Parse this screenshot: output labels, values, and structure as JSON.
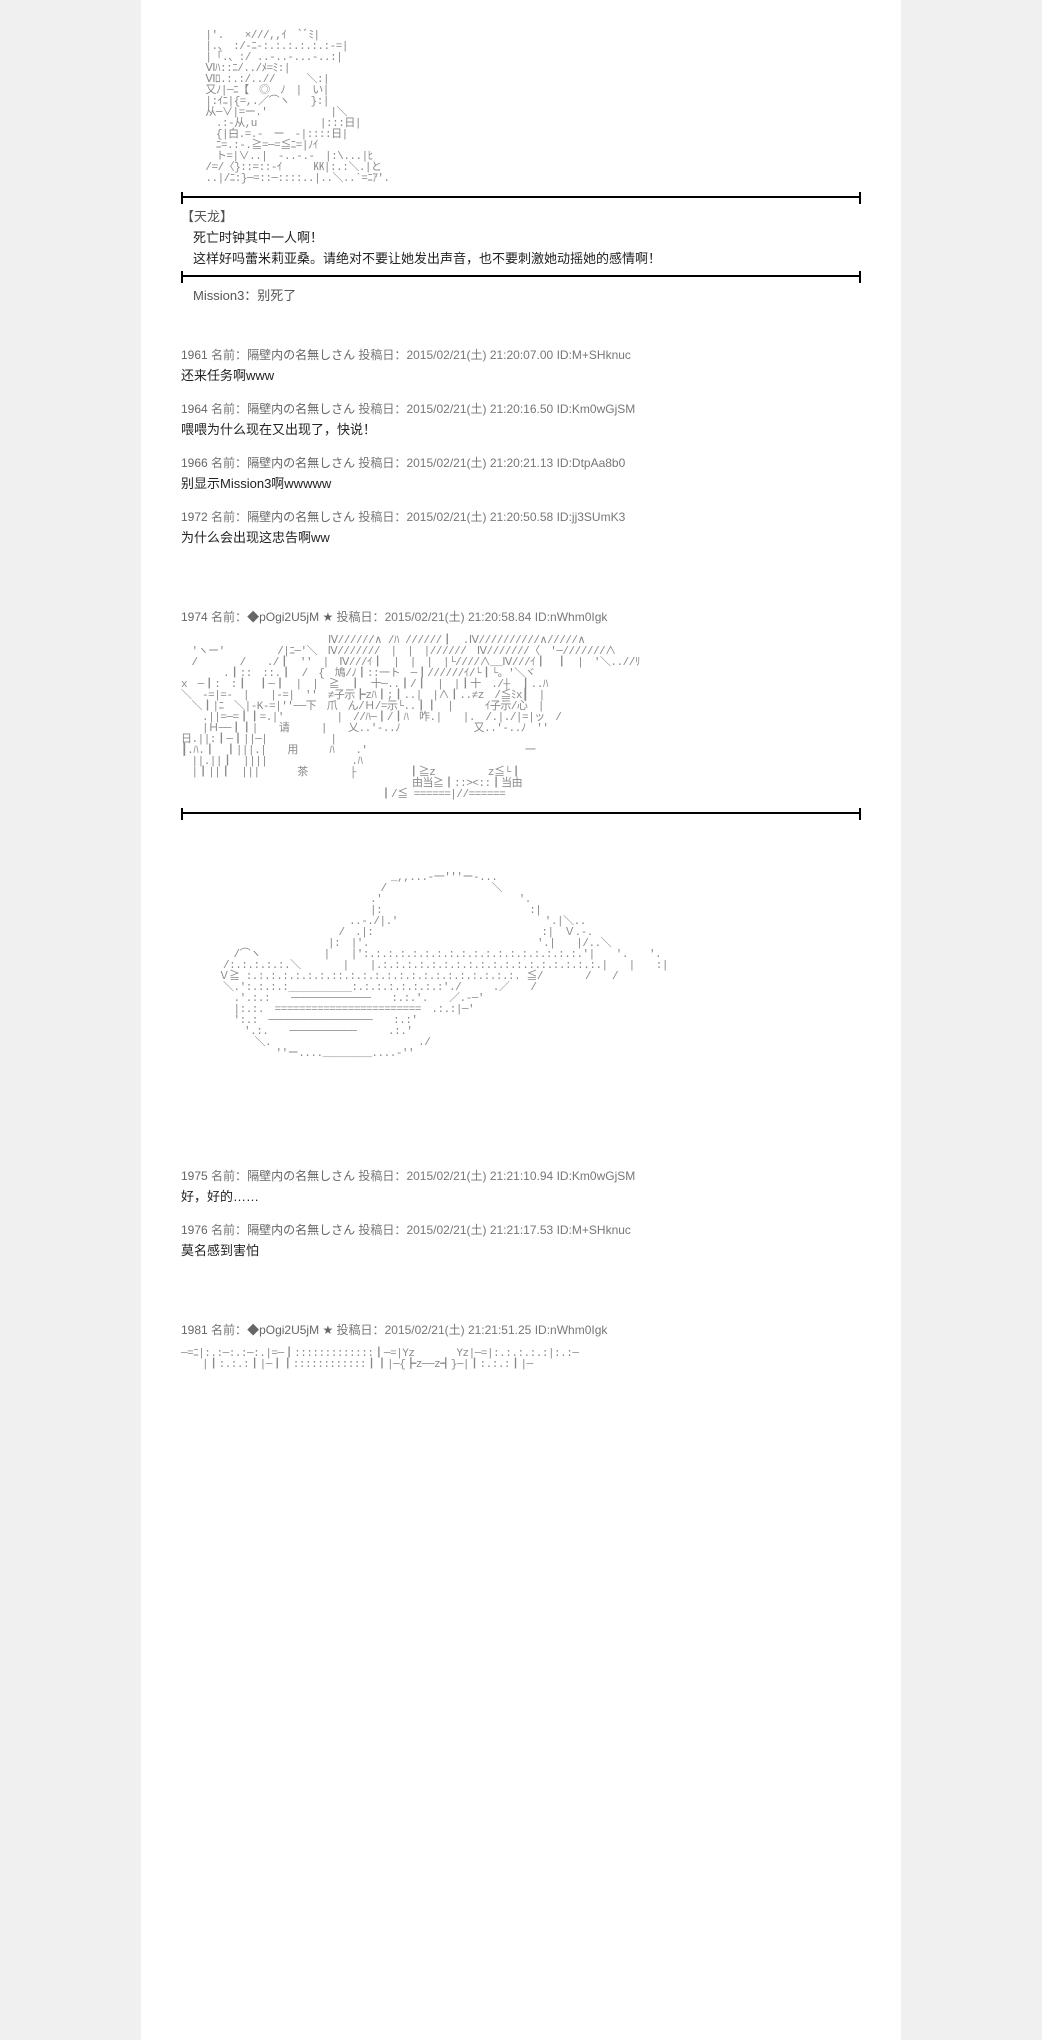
{
  "colors": {
    "page_bg": "#ffffff",
    "body_bg": "#f0f0f0",
    "text": "#222222",
    "meta": "#777777",
    "ascii": "#888888",
    "divider": "#000000"
  },
  "dialogue1": {
    "speaker": "【天龙】",
    "lines": [
      "死亡时钟其中一人啊！",
      "这样好吗蕾米莉亚桑。请绝对不要让她发出声音，也不要刺激她动摇她的感情啊！"
    ]
  },
  "mission": "Mission3：别死了",
  "posts1": [
    {
      "num": "1961",
      "name": "隔壁内の名無しさん",
      "date": "2015/02/21(土) 21:20:07.00",
      "id": "M+SHknuc",
      "body": "还来任务啊www"
    },
    {
      "num": "1964",
      "name": "隔壁内の名無しさん",
      "date": "2015/02/21(土) 21:20:16.50",
      "id": "Km0wGjSM",
      "body": "喂喂为什么现在又出现了，快说！"
    },
    {
      "num": "1966",
      "name": "隔壁内の名無しさん",
      "date": "2015/02/21(土) 21:20:21.13",
      "id": "DtpAa8b0",
      "body": "别显示Mission3啊wwwww"
    },
    {
      "num": "1972",
      "name": "隔壁内の名無しさん",
      "date": "2015/02/21(土) 21:20:50.58",
      "id": "jj3SUmK3",
      "body": "为什么会出现这忠告啊ww"
    }
  ],
  "post_trip": {
    "num": "1974",
    "name": "◆pOgi2U5jM",
    "star": "★",
    "date": "2015/02/21(土) 21:20:58.84",
    "id": "nWhm0Igk"
  },
  "tea_text": {
    "line1": "请",
    "line2": "用",
    "line3": "茶"
  },
  "posts2": [
    {
      "num": "1975",
      "name": "隔壁内の名無しさん",
      "date": "2015/02/21(土) 21:21:10.94",
      "id": "Km0wGjSM",
      "body": "好，好的……"
    },
    {
      "num": "1976",
      "name": "隔壁内の名無しさん",
      "date": "2015/02/21(土) 21:21:17.53",
      "id": "M+SHknuc",
      "body": "莫名感到害怕"
    }
  ],
  "post_trip2": {
    "num": "1981",
    "name": "◆pOgi2U5jM",
    "star": "★",
    "date": "2015/02/21(土) 21:21:51.25",
    "id": "nWhm0Igk"
  },
  "labels": {
    "name_prefix": "名前：",
    "date_prefix": "投稿日：",
    "id_prefix": "ID:"
  },
  "ascii": {
    "art1": "    |'.　　×///,,ｲ　`ﾞﾐ|\n    |.、　:/-ﾆ-:.:.:.:.:.:-=|\n    |「.、:/ ..-..-...-..:|\n    Ⅵﾊ::ﾆ/../ﾒ=ﾐ:|\n    Ⅵﾛ.:.:/..//　　　＼:|\n    又ﾉ|─ﾆ【　◎　ﾉ　|　い|\n    |:ｲﾆ|{=,.／⌒ヽ　　}:|\n    从─∨|=ー.'　　　　　　|＼\n    　.:-从,u　　　　　　|:::日|\n    　{|白.=.-　ー　-|::::日|\n    　ﾆ=.:-.≧=─=≦ﾆ=|ﾉｲ\n    　ト=|∨..|　-..-.-　|:\\...|ﾋ\n    /=/〈}::=::-ｲ　　　㏍|:.:＼.|と\n    ..|/ﾆ:}─=::─::::..|..＼..`=ﾆｱ'.",
    "art2": "　　　　　　　　　　　　　　Ⅳ//////∧ /ﾊ //////┃　.Ⅳ//////////∧/////∧\n　'ヽー'　　　　　/|ﾆ─'＼　Ⅳ///////　|　|　|//////　Ⅳ///////〈　'─///////∧\n　/　　　　/　　./┃　''　|　Ⅳ///ｲ┃　|　|　|　|└////∧__Ⅳ///ｲ┃　┃　|　'＼..//ﾘ\n　　　　.┃::　::.┃　/　{　鳩/ﾉ┃::一ト　─┃//////ｲ/└┃└。'＼ヾ\nx　─┃:　:┃　┃─┃　|　|　≧　┃　十─..┃/┃　|　|┃十　./┼　┃..ﾊ\n＼　-=|=-　|　　|-=|　''　≠子示┣zﾊ┃;┃..|　|∧┃..≠z　/≦ﾐx┃　|\n　＼┃|ﾆ　＼|-K-=|''──下　爪　ん/Ｈ/=示└..┃┃　|　　　ｲ子示/心　|\n　　.||=─=┃┃=.|'　　　　　|　//ﾊ─┃/┃ﾊ　咋.|　　|.　/.|./|=|ッ　/\n　　|Ｈ──┃┃|　　请　　　|　　乂..'-..ﾉ　　　　　　　又..'-..ﾉ　''\n日.||:┃─┃||─|　　　　　　|\n┃.ﾊ.┃　┃|||.|　　用　　　ﾊ　　.'　　　　　　　　　　　　　　　一\n　||.||┃　||||　　　　　　　　.ﾊ\n　|┃||┃　||| 　　　茶　　　　├　　　　　┃≧z　　　　　z≦└┃\n　　　　　　　　　　　　　　　　　　　　　　由当≧┃::><::┃当由\n　　　　　　　　　　　　　　　　　　　┃/≦ ======|//======",
    "art3": "　　　　　　　　　　　　　　　　　　　　_,,...-一'''ー-...\n　　　　　　　　　　　　　　　　　　　/　　　　　　　　　　＼\n　　　　　　　　　　　　　　　　　　.'　　　　　　　　　　　　　'.\n　　　　　　　　　　　　　　　　　　|:　　　　　　　　　　　　　　:|\n　　　　　　　　　　　　　　　　..-./|.'　　　　　　　　　　　　　　'.|＼..\n　　　　　　　　　　　　　　　/　.|:　　　　　　　　　　　　　　　　:|　Ｖ.-.\n　　　　　　　　　　　　　　|:　|'.　　　　　　　　　　　　　　　　'.|　　|/..＼\n　　　　　/⌒ヽ　　　　　　|　　|':.:.:.:.:.:.:.:.:.:.:.:.:.:.:.:.:.:.'|　　'.　　'.\n　　　　/:.:.:.:.:.＼　　　　|　　|.:.:.:.:.:.:.:.:.:.:.:.:.:.:.:.:.:.:.|　　|　　:|\n　　　 Ｖ≧ :.:.:.:.:.:.:.::.:.:.:.:.:.:.:.:.:.:.:.:.:.:. ≦/　　　　/　　/\n　　　　＼.':.:.:.:＿＿＿＿＿＿:.:.:.:.:.:.:.:'./　　　.／　　/\n　　　　　.'.:.:　　─────────────　　:.:.'.　　／.-─'\n　　　　　|:.:.　========================　.:.:|─'\n　　　　　':.:　─────────────────　　:.:'\n　　　　　　'.:.　　───────────　　　.:.'\n　　　　　　　＼.　　　　　　　　　　　　　　./\n　　　　　　　　　''ー....________....-''",
    "art4": "─=ﾆ|:.:─:.:─:.|=─┃:::::::::::::┃─=|Yz　　　　Yz|─=|:.:.:.:.:|:.:─\n　　|┃:.:.:┃|─┃┃::::::::::::┃┃|─{┣z──z┫}─|┃:.:.:┃|─"
  }
}
